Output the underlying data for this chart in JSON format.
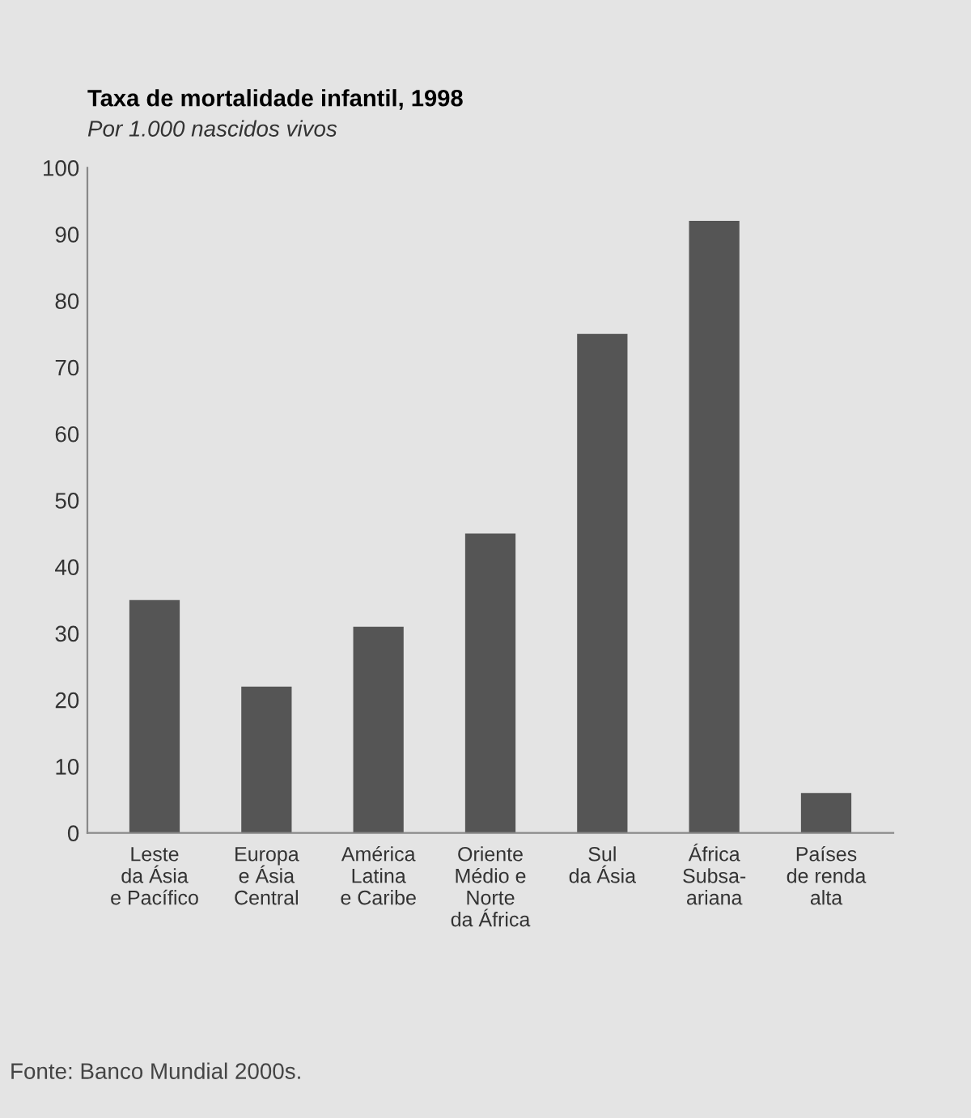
{
  "chart_data": {
    "type": "bar",
    "title": "Taxa de mortalidade infantil, 1998",
    "subtitle": "Por 1.000 nascidos vivos",
    "categories": [
      "Leste\nda Ásia\ne Pacífico",
      "Europa\ne Ásia\nCentral",
      "América\nLatina\ne Caribe",
      "Oriente\nMédio e\nNorte\nda África",
      "Sul\nda Ásia",
      "África\nSubsa-\nariana",
      "Países\nde renda\nalta"
    ],
    "values": [
      35,
      22,
      31,
      45,
      75,
      92,
      6
    ],
    "color": "#555555",
    "ylim": [
      0,
      100
    ],
    "yticks": [
      0,
      10,
      20,
      30,
      40,
      50,
      60,
      70,
      80,
      90,
      100
    ],
    "grid": false,
    "legend": false,
    "annotations": [
      "Fonte: Banco Mundial 2000s."
    ]
  }
}
